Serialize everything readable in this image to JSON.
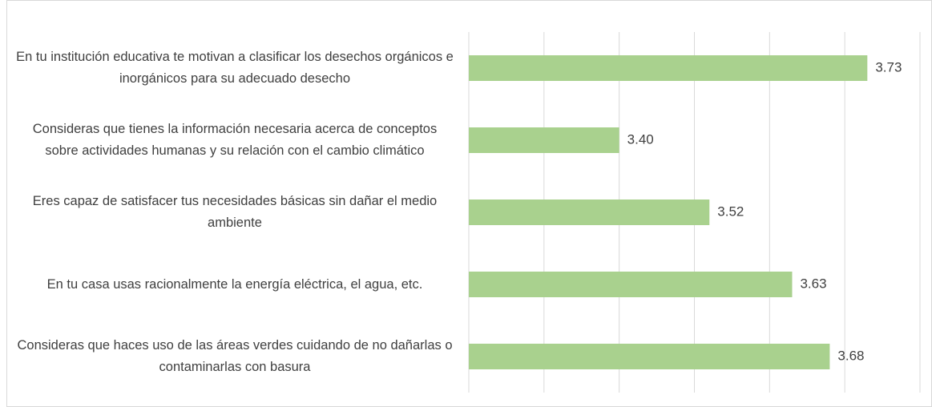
{
  "chart_data": {
    "type": "bar",
    "orientation": "horizontal",
    "categories": [
      "En tu institución educativa te motivan a clasificar los desechos orgánicos e inorgánicos para su adecuado desecho",
      "Consideras que tienes la información necesaria acerca de conceptos sobre actividades humanas y su relación con el cambio climático",
      "Eres capaz de satisfacer tus necesidades básicas sin dañar el medio ambiente",
      "En tu casa usas racionalmente la energía eléctrica, el agua, etc.",
      "Consideras que haces uso de las áreas verdes cuidando de no dañarlas o contaminarlas con basura"
    ],
    "values": [
      3.73,
      3.4,
      3.52,
      3.63,
      3.68
    ],
    "value_labels": [
      "3.73",
      "3.40",
      "3.52",
      "3.63",
      "3.68"
    ],
    "color": "#a9d18e",
    "xlim": [
      3.2,
      3.8
    ],
    "xticks": [
      3.2,
      3.3,
      3.4,
      3.5,
      3.6,
      3.7,
      3.8
    ],
    "grid": true
  }
}
